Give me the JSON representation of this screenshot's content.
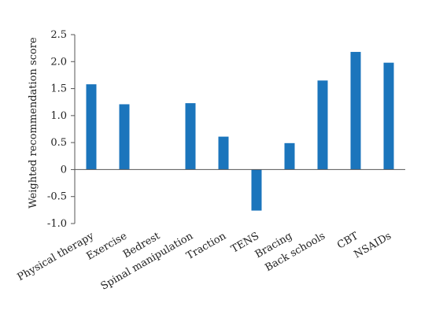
{
  "chart_data": {
    "type": "bar",
    "title": "",
    "xlabel": "",
    "ylabel": "Weighted recommendation score",
    "ylim": [
      -1.0,
      2.5
    ],
    "yticks": [
      -1.0,
      -0.5,
      0,
      0.5,
      1.0,
      1.5,
      2.0,
      2.5
    ],
    "ytick_labels": [
      "-1.0",
      "-0.5",
      "0",
      "0.5",
      "1.0",
      "1.5",
      "2.0",
      "2.5"
    ],
    "categories": [
      "Physical therapy",
      "Exercise",
      "Bedrest",
      "Spinal manipulation",
      "Traction",
      "TENS",
      "Bracing",
      "Back schools",
      "CBT",
      "NSAIDs"
    ],
    "values": [
      1.58,
      1.21,
      0,
      1.23,
      0.61,
      -0.76,
      0.49,
      1.65,
      2.18,
      1.98
    ],
    "bar_color": "#1b75bc",
    "grid": false,
    "legend": "none"
  }
}
